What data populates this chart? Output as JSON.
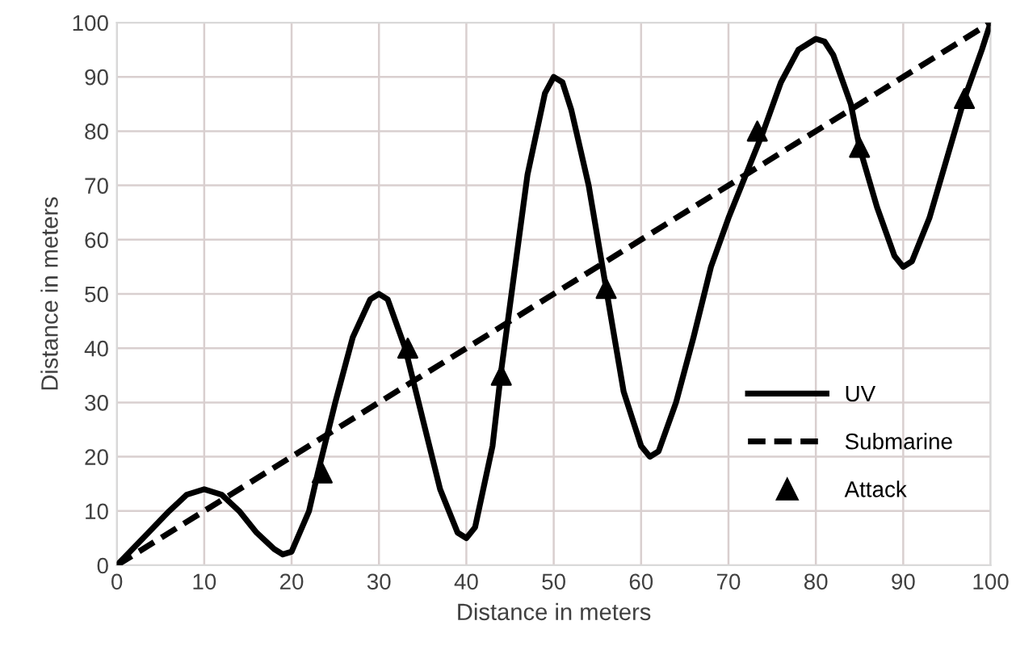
{
  "chart_data": {
    "type": "line",
    "xlabel": "Distance in meters",
    "ylabel": "Distance in meters",
    "xlim": [
      0,
      100
    ],
    "ylim": [
      0,
      100
    ],
    "xticks": [
      0,
      10,
      20,
      30,
      40,
      50,
      60,
      70,
      80,
      90,
      100
    ],
    "yticks": [
      0,
      10,
      20,
      30,
      40,
      50,
      60,
      70,
      80,
      90,
      100
    ],
    "grid": true,
    "legend": "bottom right",
    "series": [
      {
        "name": "UV",
        "color": "#000000",
        "line_style": "solid",
        "marker": "none",
        "x": [
          0,
          3,
          6,
          8,
          10,
          12,
          14,
          16,
          18,
          19,
          20,
          22,
          23,
          25,
          27,
          29,
          30,
          31,
          33,
          35,
          37,
          39,
          40,
          41,
          43,
          44,
          45,
          47,
          49,
          50,
          51,
          52,
          54,
          56,
          58,
          60,
          61,
          62,
          64,
          66,
          68,
          70,
          72,
          74,
          76,
          78,
          80,
          81,
          82,
          84,
          85,
          87,
          89,
          90,
          91,
          93,
          95,
          97,
          99,
          100
        ],
        "values": [
          0,
          5,
          10,
          13,
          14,
          13,
          10,
          6,
          3,
          2,
          2.5,
          10,
          17,
          30,
          42,
          49,
          50,
          49,
          40,
          27,
          14,
          6,
          5,
          7,
          22,
          36,
          48,
          72,
          87,
          90,
          89,
          84,
          70,
          51,
          32,
          22,
          20,
          21,
          30,
          42,
          55,
          64,
          72,
          80,
          89,
          95,
          97,
          96.5,
          94,
          85,
          77,
          66,
          57,
          55,
          56,
          64,
          75,
          86,
          95,
          100
        ]
      },
      {
        "name": "Submarine",
        "color": "#000000",
        "line_style": "dashed",
        "marker": "none",
        "x": [
          0,
          100
        ],
        "values": [
          0,
          100
        ]
      },
      {
        "name": "Attack",
        "type": "scatter",
        "color": "#000000",
        "marker": "triangle",
        "x": [
          23.5,
          33.3,
          44,
          56,
          73.3,
          85,
          97
        ],
        "values": [
          17,
          40,
          35,
          51,
          80,
          77,
          86
        ]
      }
    ]
  }
}
